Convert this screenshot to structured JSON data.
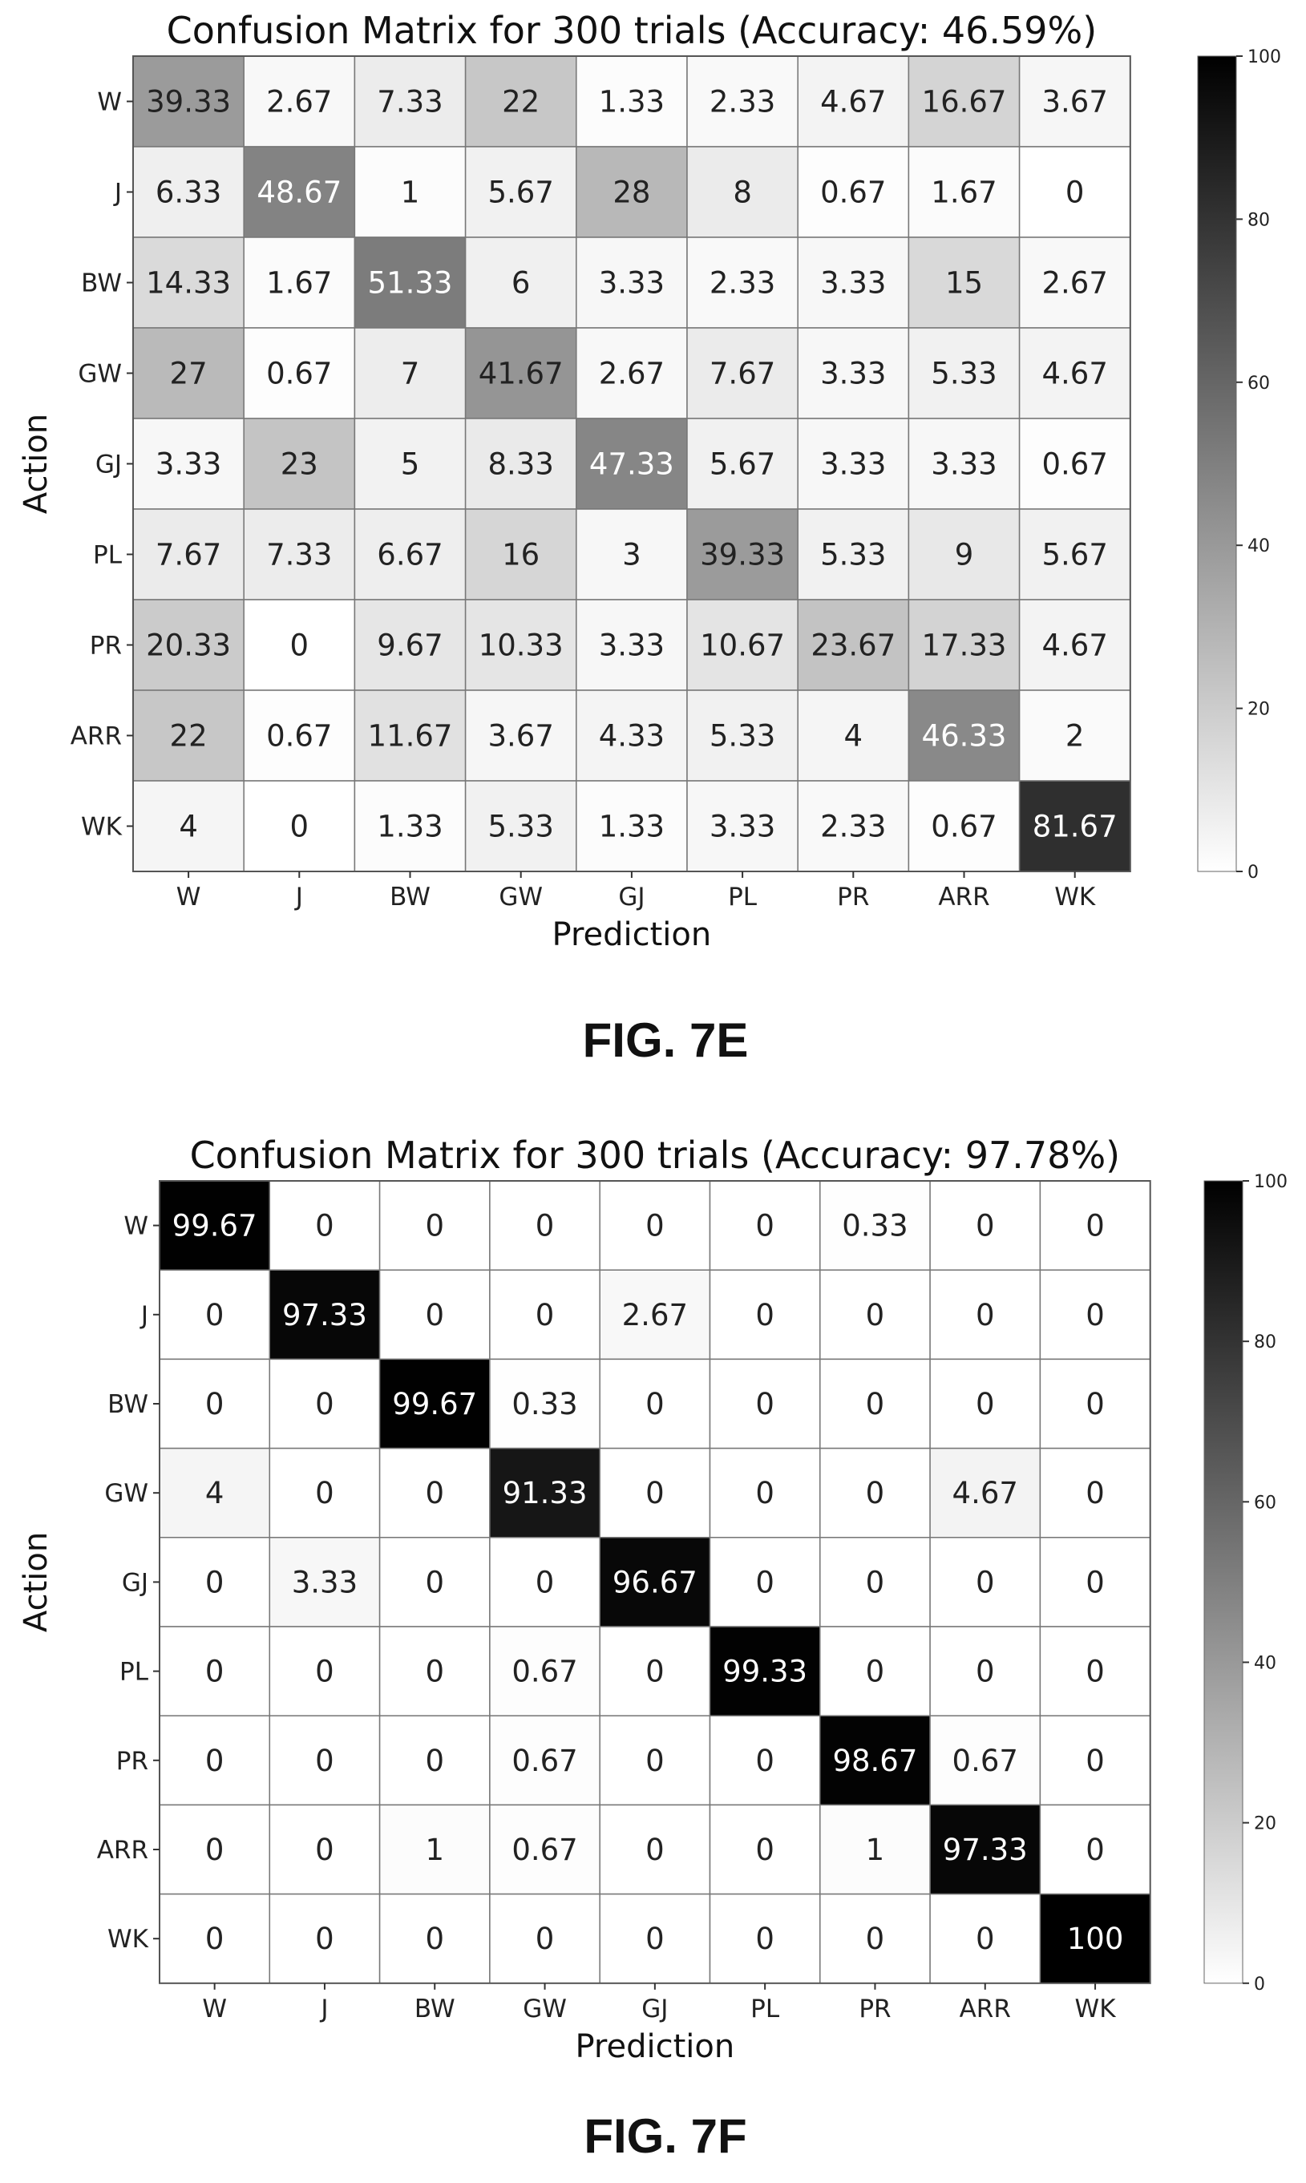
{
  "figures": [
    {
      "caption": "FIG. 7E"
    },
    {
      "caption": "FIG. 7F"
    }
  ],
  "chart_data": [
    {
      "type": "heatmap",
      "title": "Confusion Matrix for 300 trials (Accuracy: 46.59%)",
      "xlabel": "Prediction",
      "ylabel": "Action",
      "x_categories": [
        "W",
        "J",
        "BW",
        "GW",
        "GJ",
        "PL",
        "PR",
        "ARR",
        "WK"
      ],
      "y_categories": [
        "W",
        "J",
        "BW",
        "GW",
        "GJ",
        "PL",
        "PR",
        "ARR",
        "WK"
      ],
      "values": [
        [
          "39.33",
          "2.67",
          "7.33",
          "22",
          "1.33",
          "2.33",
          "4.67",
          "16.67",
          "3.67"
        ],
        [
          "6.33",
          "48.67",
          "1",
          "5.67",
          "28",
          "8",
          "0.67",
          "1.67",
          "0"
        ],
        [
          "14.33",
          "1.67",
          "51.33",
          "6",
          "3.33",
          "2.33",
          "3.33",
          "15",
          "2.67"
        ],
        [
          "27",
          "0.67",
          "7",
          "41.67",
          "2.67",
          "7.67",
          "3.33",
          "5.33",
          "4.67"
        ],
        [
          "3.33",
          "23",
          "5",
          "8.33",
          "47.33",
          "5.67",
          "3.33",
          "3.33",
          "0.67"
        ],
        [
          "7.67",
          "7.33",
          "6.67",
          "16",
          "3",
          "39.33",
          "5.33",
          "9",
          "5.67"
        ],
        [
          "20.33",
          "0",
          "9.67",
          "10.33",
          "3.33",
          "10.67",
          "23.67",
          "17.33",
          "4.67"
        ],
        [
          "22",
          "0.67",
          "11.67",
          "3.67",
          "4.33",
          "5.33",
          "4",
          "46.33",
          "2"
        ],
        [
          "4",
          "0",
          "1.33",
          "5.33",
          "1.33",
          "3.33",
          "2.33",
          "0.67",
          "81.67"
        ]
      ],
      "colorbar": {
        "range": [
          0,
          100
        ],
        "ticks": [
          "0",
          "20",
          "40",
          "60",
          "80",
          "100"
        ]
      },
      "colormap": [
        "#ffffff",
        "#000000"
      ]
    },
    {
      "type": "heatmap",
      "title": "Confusion Matrix for 300 trials (Accuracy: 97.78%)",
      "xlabel": "Prediction",
      "ylabel": "Action",
      "x_categories": [
        "W",
        "J",
        "BW",
        "GW",
        "GJ",
        "PL",
        "PR",
        "ARR",
        "WK"
      ],
      "y_categories": [
        "W",
        "J",
        "BW",
        "GW",
        "GJ",
        "PL",
        "PR",
        "ARR",
        "WK"
      ],
      "values": [
        [
          "99.67",
          "0",
          "0",
          "0",
          "0",
          "0",
          "0.33",
          "0",
          "0"
        ],
        [
          "0",
          "97.33",
          "0",
          "0",
          "2.67",
          "0",
          "0",
          "0",
          "0"
        ],
        [
          "0",
          "0",
          "99.67",
          "0.33",
          "0",
          "0",
          "0",
          "0",
          "0"
        ],
        [
          "4",
          "0",
          "0",
          "91.33",
          "0",
          "0",
          "0",
          "4.67",
          "0"
        ],
        [
          "0",
          "3.33",
          "0",
          "0",
          "96.67",
          "0",
          "0",
          "0",
          "0"
        ],
        [
          "0",
          "0",
          "0",
          "0.67",
          "0",
          "99.33",
          "0",
          "0",
          "0"
        ],
        [
          "0",
          "0",
          "0",
          "0.67",
          "0",
          "0",
          "98.67",
          "0.67",
          "0"
        ],
        [
          "0",
          "0",
          "1",
          "0.67",
          "0",
          "0",
          "1",
          "97.33",
          "0"
        ],
        [
          "0",
          "0",
          "0",
          "0",
          "0",
          "0",
          "0",
          "0",
          "100"
        ]
      ],
      "colorbar": {
        "range": [
          0,
          100
        ],
        "ticks": [
          "0",
          "20",
          "40",
          "60",
          "80",
          "100"
        ]
      },
      "colormap": [
        "#ffffff",
        "#000000"
      ]
    }
  ]
}
